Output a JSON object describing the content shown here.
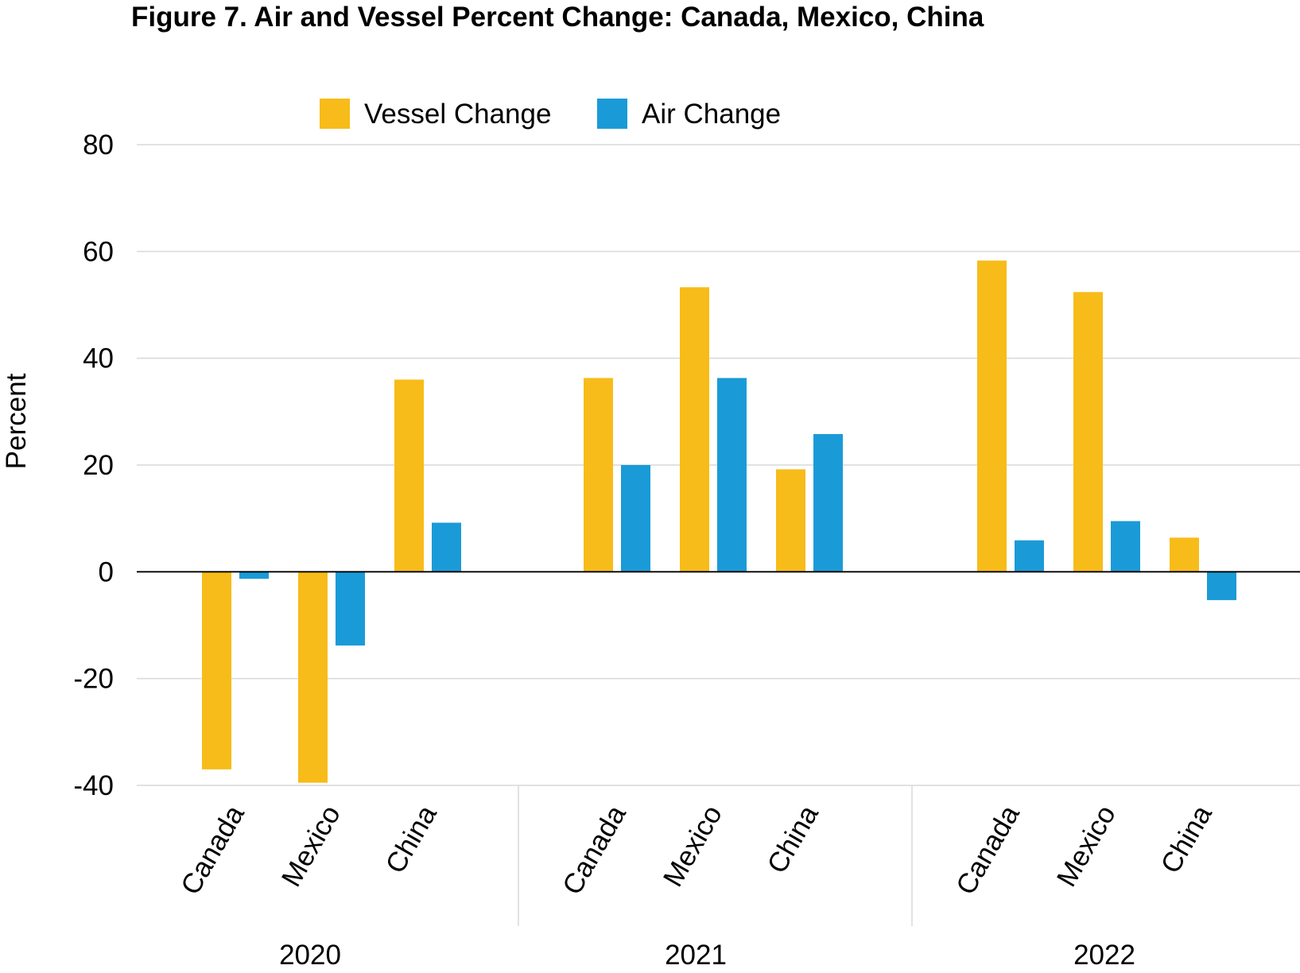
{
  "chart_data": {
    "type": "bar",
    "title": "Figure 7. Air and Vessel Percent Change: Canada, Mexico, China",
    "xlabel": "",
    "ylabel": "Percent",
    "ylim": [
      -40,
      80
    ],
    "yticks": [
      80,
      60,
      40,
      20,
      0,
      -20,
      -40
    ],
    "grid": true,
    "legend_position": "top-center",
    "groups": [
      {
        "label": "2020",
        "categories": [
          "Canada",
          "Mexico",
          "China"
        ]
      },
      {
        "label": "2021",
        "categories": [
          "Canada",
          "Mexico",
          "China"
        ]
      },
      {
        "label": "2022",
        "categories": [
          "Canada",
          "Mexico",
          "China"
        ]
      }
    ],
    "series": [
      {
        "name": "Vessel Change",
        "color": "#F7BC19",
        "values": [
          -37,
          -39.5,
          36,
          36.3,
          53.3,
          19.2,
          58.3,
          52.4,
          6.4
        ]
      },
      {
        "name": "Air Change",
        "color": "#1A9BD7",
        "values": [
          -1.3,
          -13.8,
          9.2,
          20,
          36.3,
          25.8,
          5.9,
          9.5,
          -5.3
        ]
      }
    ]
  }
}
